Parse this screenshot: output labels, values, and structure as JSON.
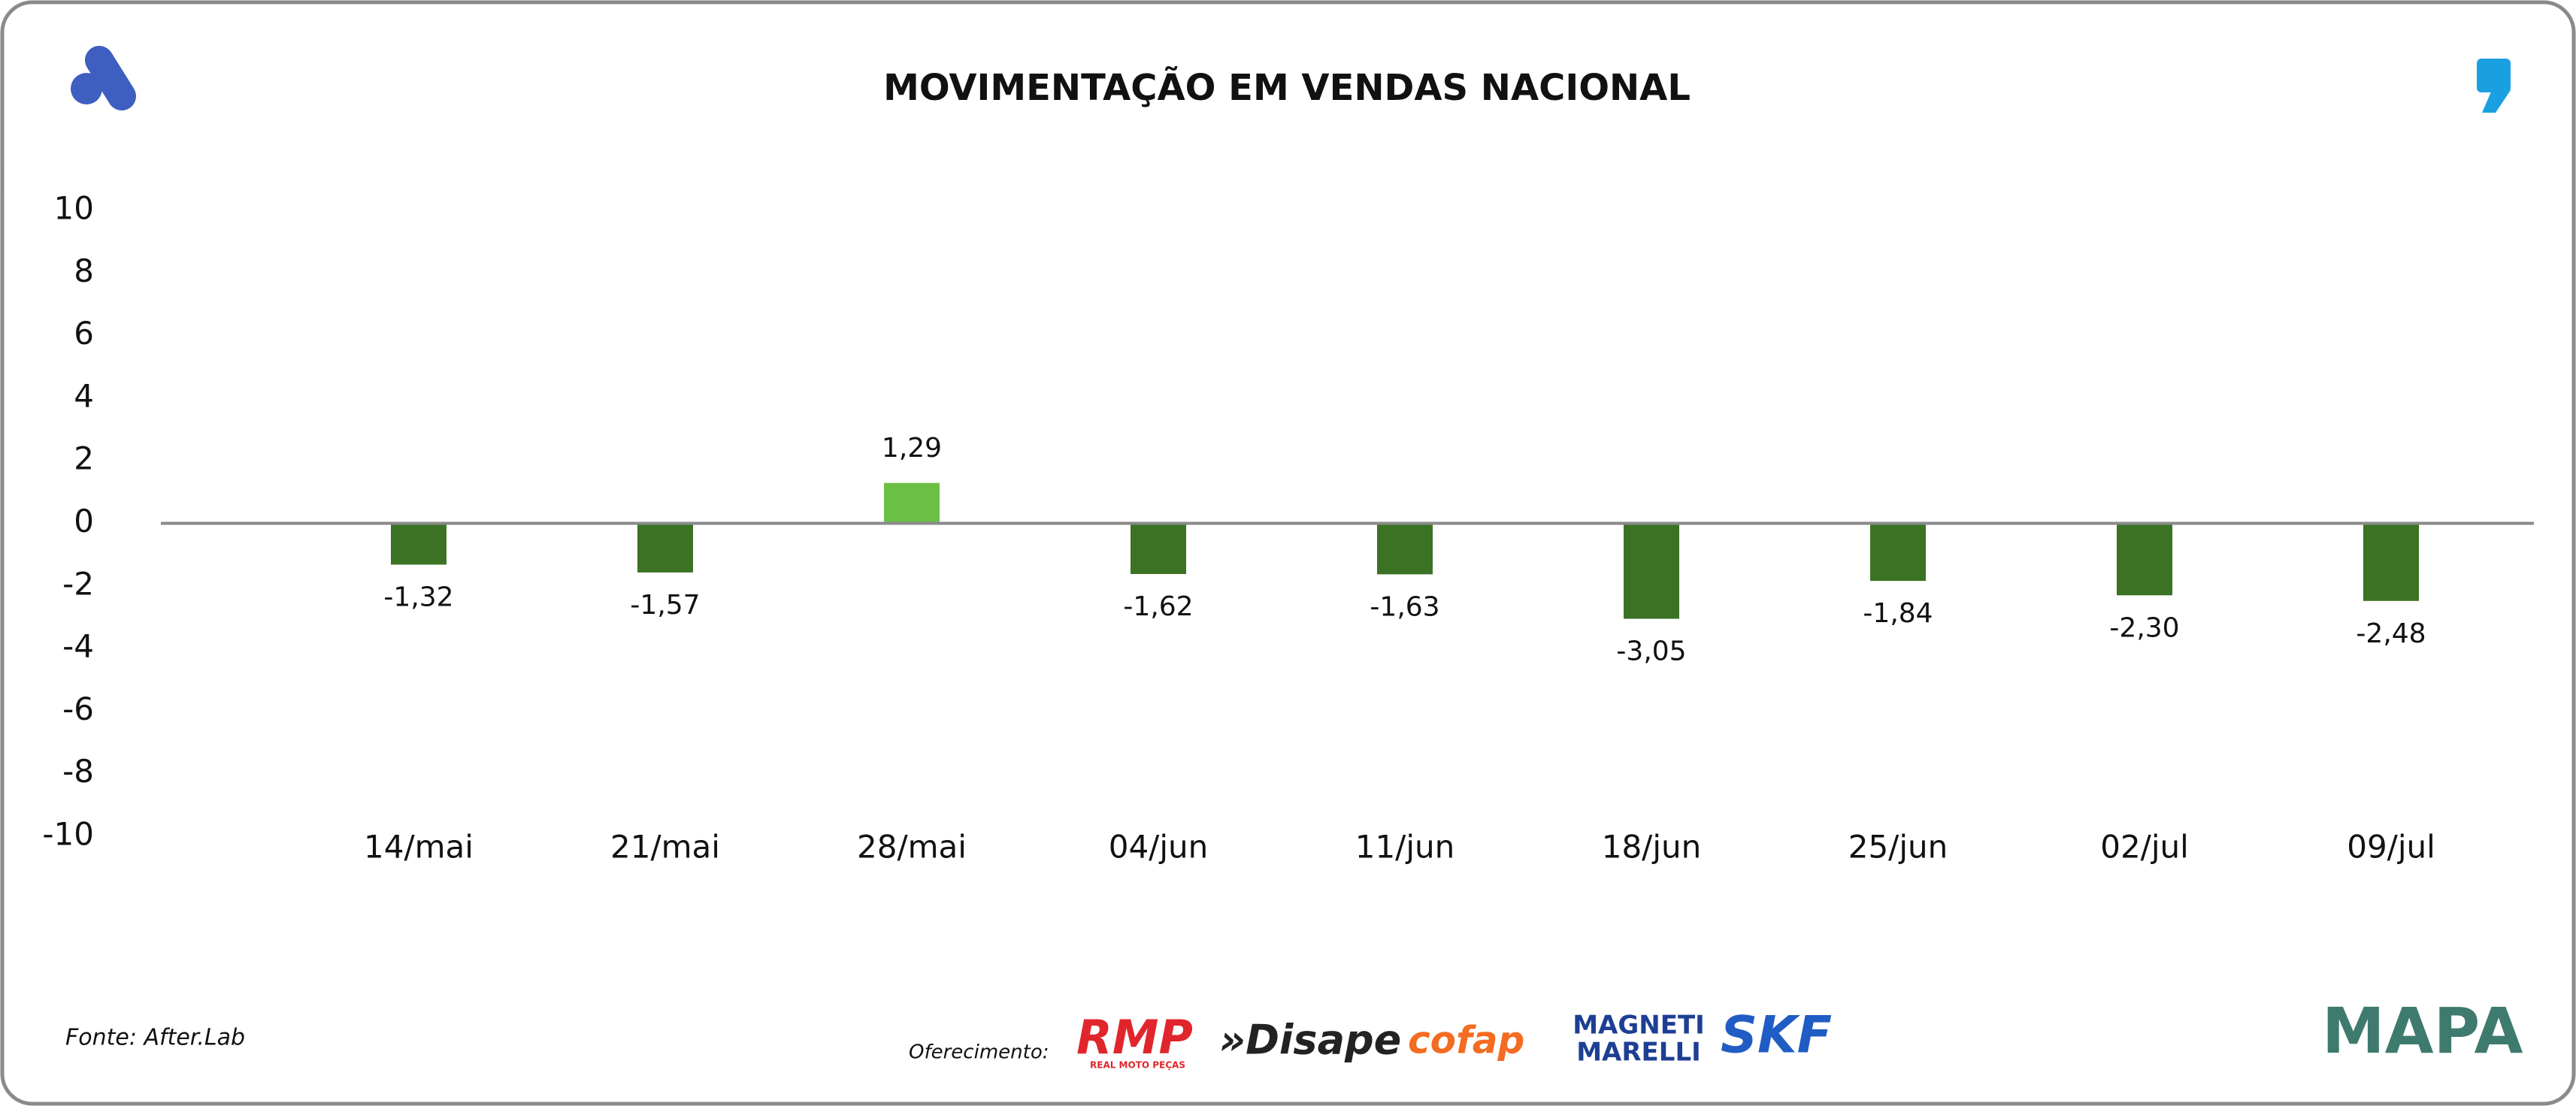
{
  "chart_data": {
    "type": "bar",
    "title": "MOVIMENTAÇÃO EM VENDAS NACIONAL",
    "categories": [
      "14/mai",
      "21/mai",
      "28/mai",
      "04/jun",
      "11/jun",
      "18/jun",
      "25/jun",
      "02/jul",
      "09/jul"
    ],
    "values": [
      -1.32,
      -1.57,
      1.29,
      -1.62,
      -1.63,
      -3.05,
      -1.84,
      -2.3,
      -2.48
    ],
    "value_labels": [
      "-1,32",
      "-1,57",
      "1,29",
      "-1,62",
      "-1,63",
      "-3,05",
      "-1,84",
      "-2,30",
      "-2,48"
    ],
    "colors": [
      "#3b7224",
      "#3b7224",
      "#6cbf45",
      "#3b7224",
      "#3b7224",
      "#3b7224",
      "#3b7224",
      "#3b7224",
      "#3b7224"
    ],
    "ylim": [
      -10,
      10
    ],
    "yticks": [
      10,
      8,
      6,
      4,
      2,
      0,
      -2,
      -4,
      -6,
      -8,
      -10
    ],
    "grid": false
  },
  "footer": {
    "source": "Fonte: After.Lab",
    "sponsor_label": "Oferecimento:",
    "sponsors": [
      "RMP",
      "REAL MOTO PEÇAS",
      "»Disape",
      "cofap",
      "MAGNETI",
      "MARELLI",
      "SKF"
    ],
    "brand": "MAPA"
  }
}
